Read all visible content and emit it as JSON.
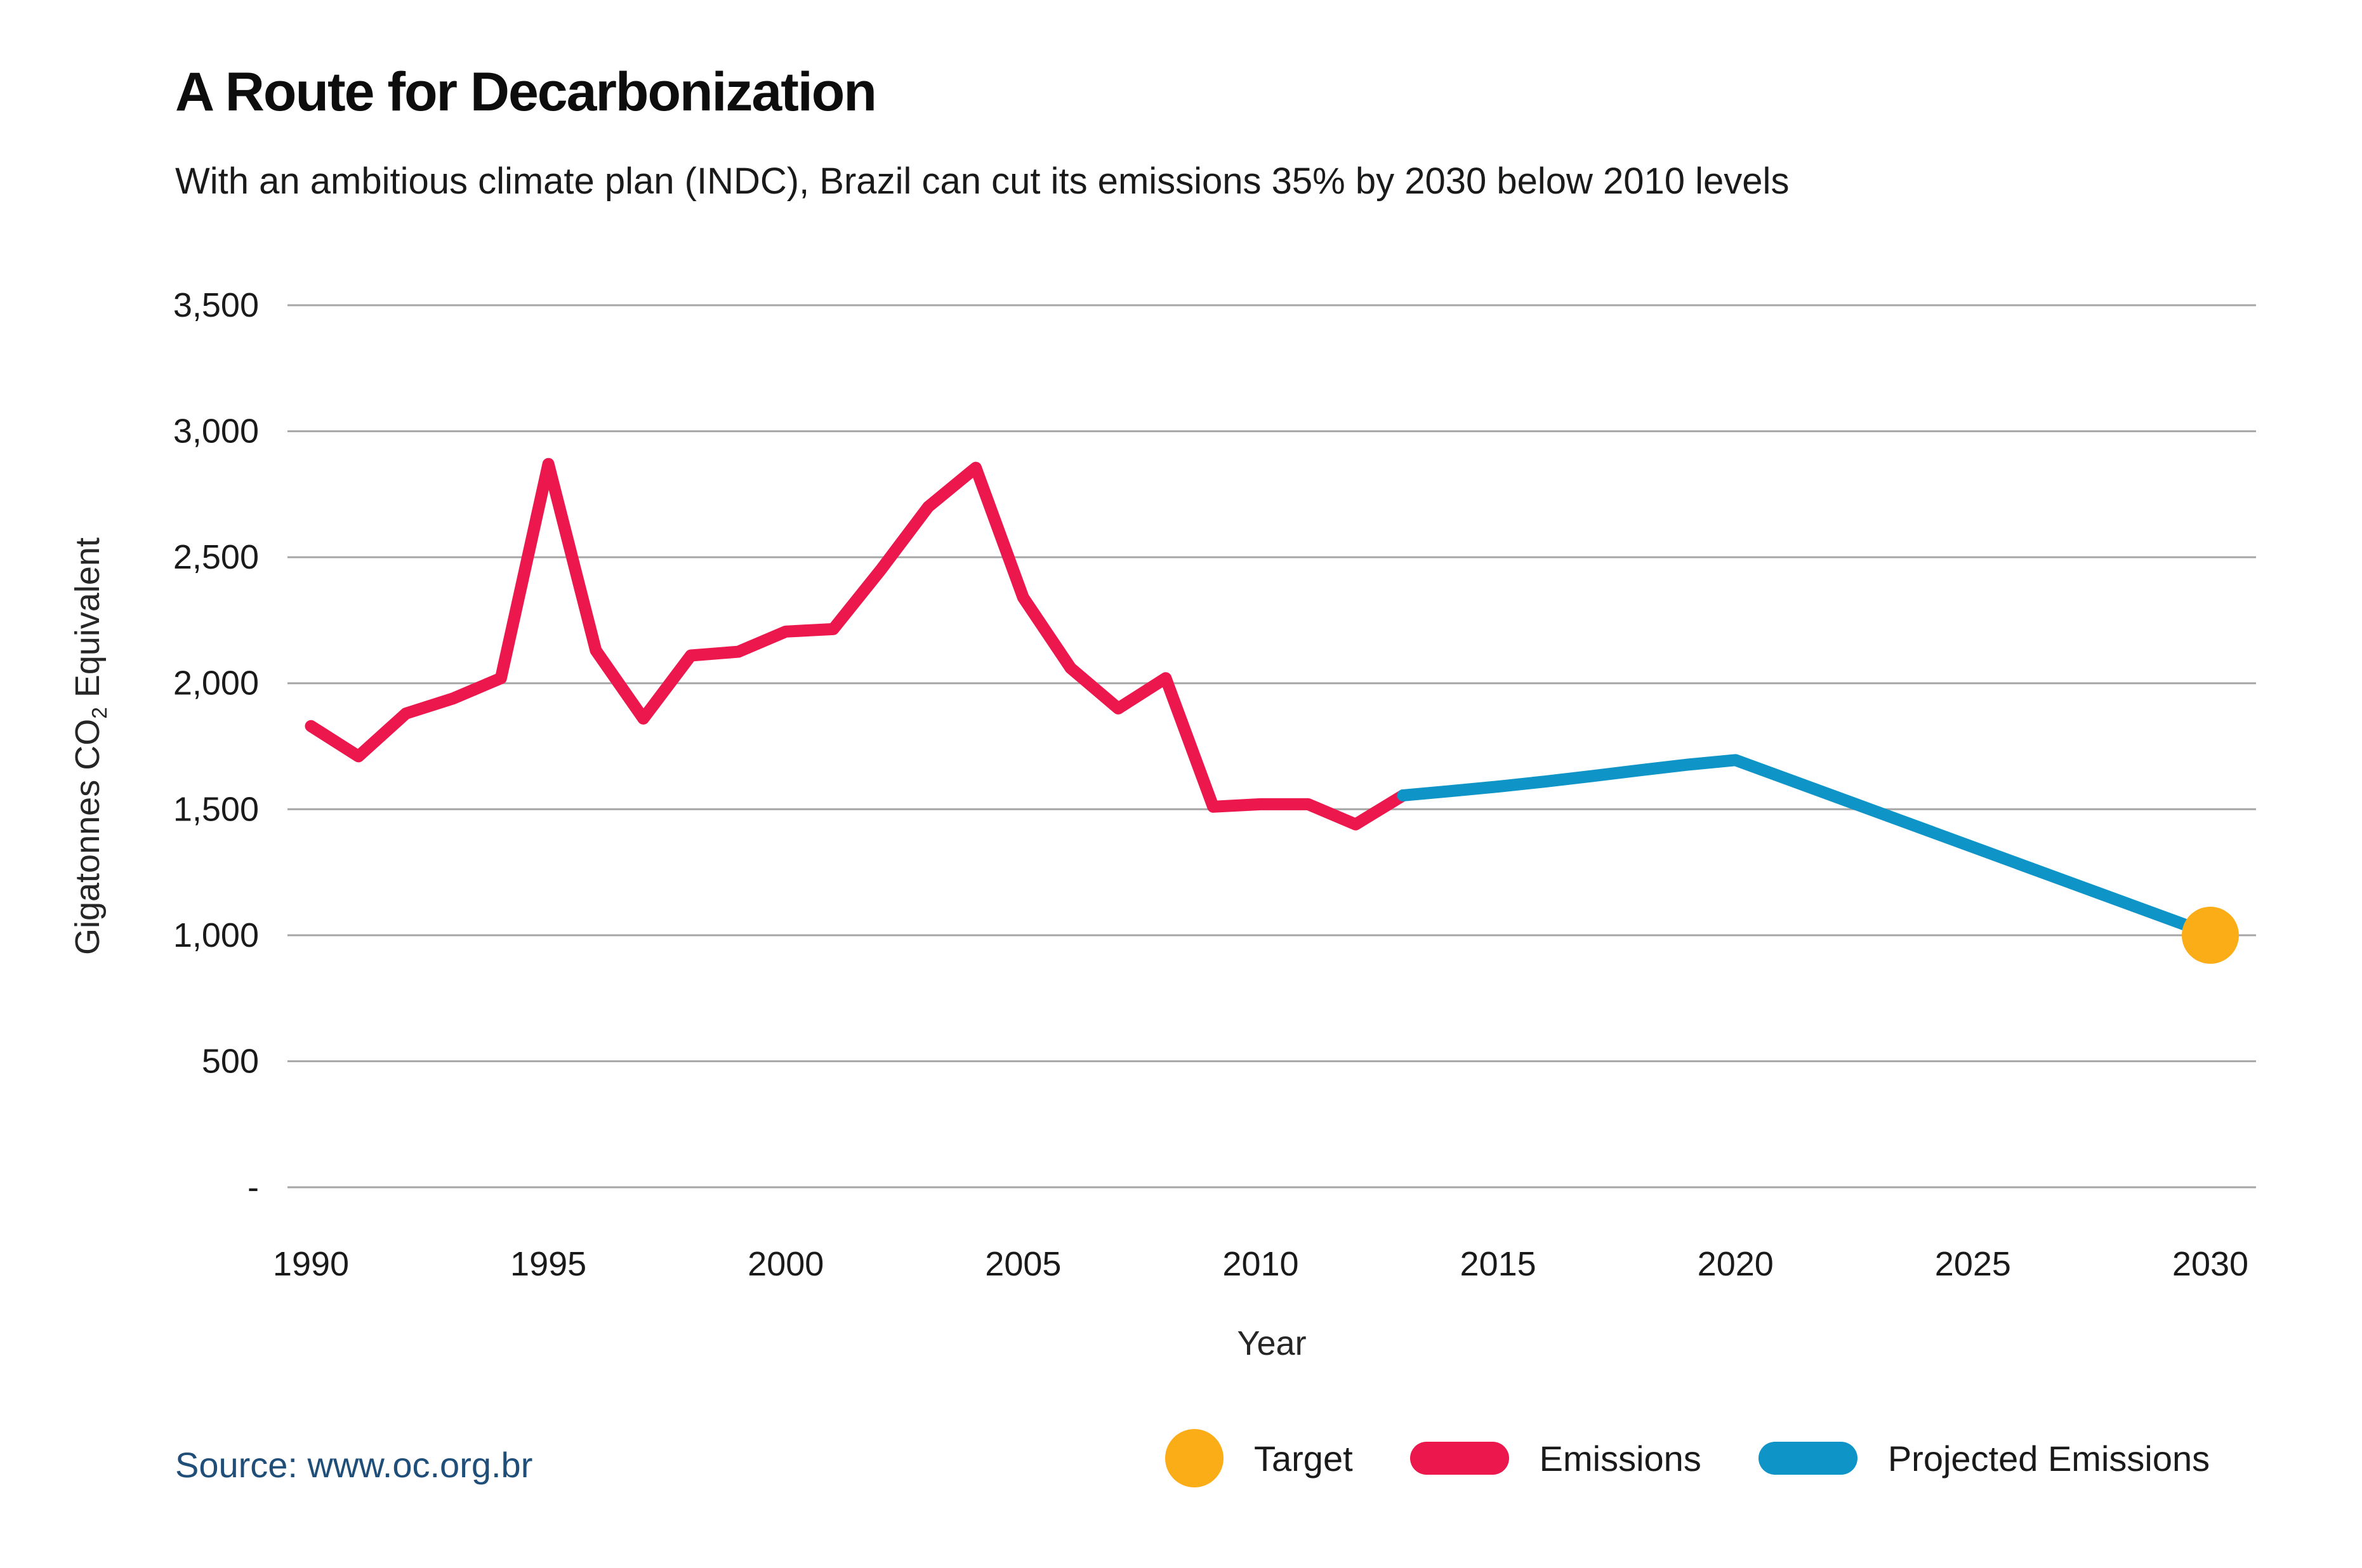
{
  "chart_data": {
    "type": "line",
    "title": "A Route for Decarbonization",
    "subtitle": "With an ambitious climate plan (INDC), Brazil can cut its emissions 35% by 2030 below 2010 levels",
    "xlabel": "Year",
    "ylabel_parts": {
      "prefix": "Gigatonnes CO",
      "sub": "2",
      "suffix": " Equivalent"
    },
    "xlim": [
      1990,
      2030
    ],
    "ylim": [
      0,
      3500
    ],
    "grid": true,
    "legend_position": "bottom-right",
    "x_ticks": [
      1990,
      1995,
      2000,
      2005,
      2010,
      2015,
      2020,
      2025,
      2030
    ],
    "y_ticks": [
      {
        "value": 3500,
        "label": "3,500"
      },
      {
        "value": 3000,
        "label": "3,000"
      },
      {
        "value": 2500,
        "label": "2,500"
      },
      {
        "value": 2000,
        "label": "2,000"
      },
      {
        "value": 1500,
        "label": "1,500"
      },
      {
        "value": 1000,
        "label": "1,000"
      },
      {
        "value": 500,
        "label": "500"
      },
      {
        "value": 0,
        "label": "-"
      }
    ],
    "series": [
      {
        "name": "Emissions",
        "color": "#EC184D",
        "x": [
          1990,
          1991,
          1992,
          1993,
          1994,
          1995,
          1996,
          1997,
          1998,
          1999,
          2000,
          2001,
          2002,
          2003,
          2004,
          2005,
          2006,
          2007,
          2008,
          2009,
          2010,
          2011,
          2012,
          2013
        ],
        "values": [
          1830,
          1710,
          1880,
          1940,
          2020,
          2870,
          2130,
          1860,
          2110,
          2125,
          2205,
          2215,
          2450,
          2700,
          2855,
          2340,
          2060,
          1900,
          2020,
          1510,
          1520,
          1520,
          1440,
          1555
        ]
      },
      {
        "name": "Projected Emissions",
        "color": "#0E94C7",
        "x": [
          2013,
          2014,
          2015,
          2016,
          2017,
          2018,
          2019,
          2020,
          2030
        ],
        "values": [
          1555,
          1572,
          1590,
          1610,
          1632,
          1655,
          1677,
          1695,
          1005
        ]
      }
    ],
    "target_point": {
      "name": "Target",
      "x": 2030,
      "value": 1000,
      "color": "#FBAD18"
    }
  },
  "legend": {
    "items": [
      {
        "label": "Target",
        "color": "#FBAD18",
        "shape": "circle"
      },
      {
        "label": "Emissions",
        "color": "#EC184D",
        "shape": "line"
      },
      {
        "label": "Projected Emissions",
        "color": "#0E94C7",
        "shape": "line"
      }
    ]
  },
  "footer": {
    "source": "Source: www.oc.org.br",
    "source_color": "#1F4E79"
  },
  "colors": {
    "emissions": "#EC184D",
    "projected_emissions": "#0E94C7",
    "target": "#FBAD18",
    "gridline": "#A6A6A6",
    "text": "#1A1A1A",
    "source": "#1F4E79"
  }
}
